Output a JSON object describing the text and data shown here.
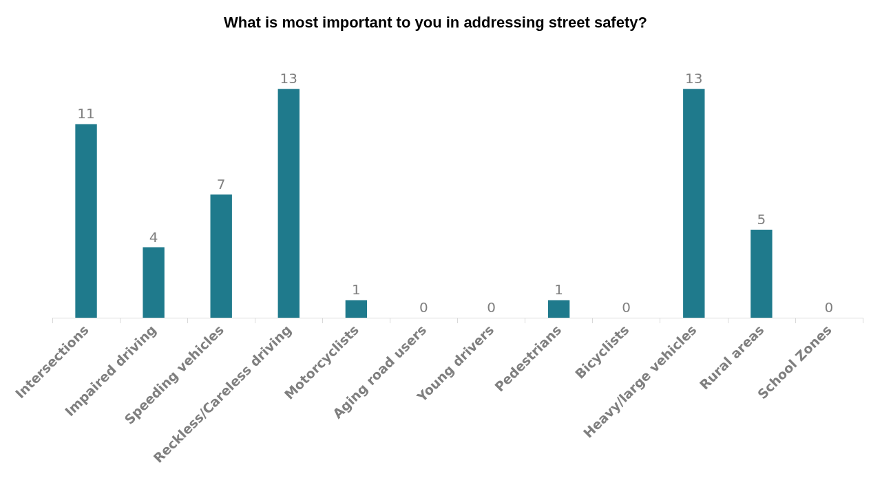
{
  "chart_data": {
    "type": "bar",
    "title": "What is most important to you in addressing street safety?",
    "categories": [
      "Intersections",
      "Impaired driving",
      "Speeding vehicles",
      "Reckless/Careless driving",
      "Motorcyclists",
      "Aging road users",
      "Young drivers",
      "Pedestrians",
      "Bicyclists",
      "Heavy/large vehicles",
      "Rural areas",
      "School Zones"
    ],
    "values": [
      11,
      4,
      7,
      13,
      1,
      0,
      0,
      1,
      0,
      13,
      5,
      0
    ],
    "color": "#1f7a8c",
    "data_labels": true,
    "grid": false,
    "tick_labels": "x"
  }
}
